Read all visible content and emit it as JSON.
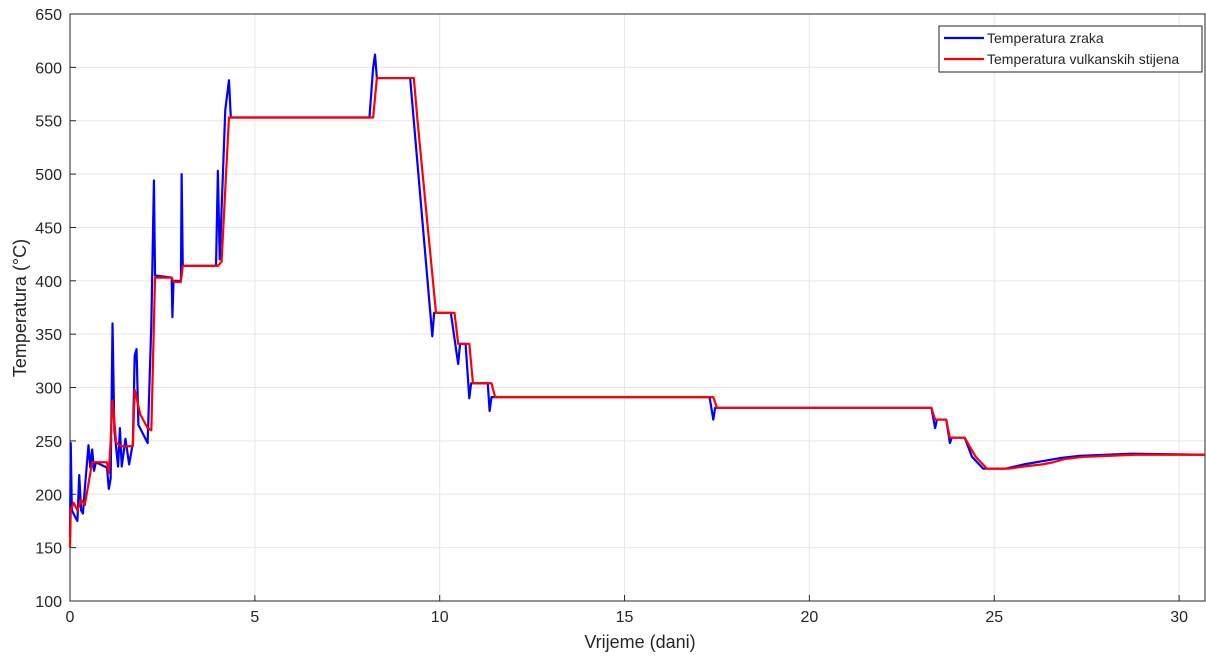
{
  "chart_data": {
    "type": "line",
    "xlabel": "Vrijeme (dani)",
    "ylabel": "Temperatura (°C)",
    "xlim": [
      0,
      30.7
    ],
    "xticks": [
      0,
      5,
      10,
      15,
      20,
      25,
      30
    ],
    "ylim": [
      100,
      650
    ],
    "yticks": [
      100,
      150,
      200,
      250,
      300,
      350,
      400,
      450,
      500,
      550,
      600,
      650
    ],
    "grid": true,
    "legend": "upper-right",
    "series": [
      {
        "name": "Temperatura zraka",
        "color": "#0000ff",
        "x": [
          0,
          0.02,
          0.05,
          0.15,
          0.2,
          0.25,
          0.3,
          0.35,
          0.4,
          0.5,
          0.55,
          0.6,
          0.65,
          0.7,
          1.0,
          1.05,
          1.1,
          1.15,
          1.2,
          1.3,
          1.35,
          1.4,
          1.5,
          1.6,
          1.7,
          1.75,
          1.8,
          1.85,
          2.1,
          2.2,
          2.27,
          2.3,
          2.75,
          2.77,
          2.8,
          3.0,
          3.02,
          3.05,
          3.95,
          4.0,
          4.05,
          4.2,
          4.3,
          4.35,
          8.1,
          8.2,
          8.25,
          8.3,
          9.2,
          9.8,
          9.85,
          10.3,
          10.5,
          10.55,
          10.7,
          10.8,
          10.85,
          11.3,
          11.35,
          11.4,
          17.3,
          17.4,
          17.45,
          23.3,
          23.4,
          23.45,
          23.7,
          23.8,
          23.85,
          24.2,
          24.4,
          24.7,
          25.3,
          25.8,
          26.3,
          26.8,
          27.3,
          28.7,
          30.7
        ],
        "values": [
          160,
          248,
          185,
          178,
          175,
          218,
          185,
          182,
          205,
          246,
          225,
          242,
          222,
          230,
          225,
          205,
          215,
          360,
          260,
          226,
          262,
          226,
          252,
          228,
          248,
          330,
          336,
          265,
          248,
          360,
          494,
          405,
          403,
          366,
          400,
          400,
          500,
          414,
          414,
          503,
          420,
          560,
          588,
          553,
          553,
          600,
          612,
          590,
          590,
          348,
          370,
          370,
          322,
          341,
          341,
          290,
          304,
          304,
          278,
          291,
          291,
          270,
          281,
          281,
          262,
          270,
          270,
          248,
          253,
          253,
          235,
          224,
          224,
          228,
          231,
          234,
          236,
          238,
          237
        ]
      },
      {
        "name": "Temperatura vulkanskih stijena",
        "color": "#ff0000",
        "x": [
          0,
          0.02,
          0.1,
          0.2,
          0.3,
          0.4,
          0.5,
          0.6,
          1.0,
          1.05,
          1.1,
          1.15,
          1.25,
          1.4,
          1.7,
          1.75,
          1.9,
          2.1,
          2.2,
          2.3,
          2.75,
          2.8,
          3.0,
          3.05,
          4.0,
          4.1,
          4.3,
          8.2,
          8.3,
          9.3,
          9.4,
          9.9,
          10.4,
          10.5,
          10.8,
          10.9,
          11.4,
          11.5,
          17.4,
          17.5,
          23.3,
          23.4,
          23.7,
          23.8,
          24.2,
          24.5,
          24.8,
          25.4,
          25.8,
          26.3,
          26.6,
          26.9,
          27.4,
          28.8,
          30.7
        ],
        "values": [
          150,
          185,
          192,
          185,
          195,
          190,
          210,
          230,
          230,
          220,
          250,
          288,
          248,
          245,
          245,
          298,
          275,
          262,
          260,
          403,
          403,
          399,
          399,
          414,
          414,
          418,
          553,
          553,
          590,
          590,
          550,
          370,
          370,
          341,
          341,
          304,
          304,
          291,
          291,
          281,
          281,
          270,
          270,
          253,
          253,
          235,
          224,
          224,
          226,
          228,
          230,
          233,
          235,
          237,
          237
        ]
      }
    ]
  }
}
